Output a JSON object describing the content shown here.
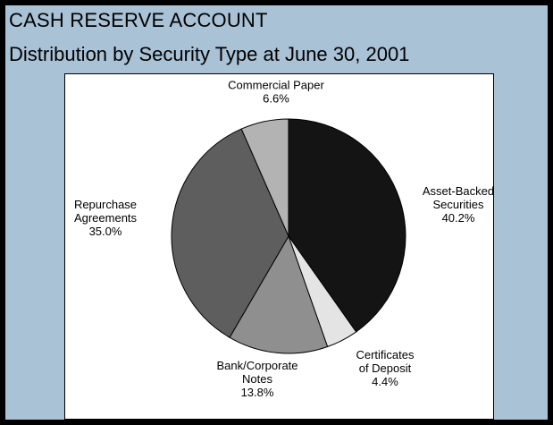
{
  "header": {
    "title": "CASH RESERVE ACCOUNT",
    "subtitle": "Distribution by Security Type at June 30, 2001"
  },
  "colors": {
    "panel_background": "#a9c2d6",
    "asset_backed": "#141414",
    "certificates": "#e4e4e4",
    "bank_corporate": "#8f8f8f",
    "repurchase": "#5e5e5e",
    "commercial_paper": "#b3b3b3"
  },
  "chart_data": {
    "type": "pie",
    "start_angle_deg": 0,
    "direction": "clockwise",
    "slices": [
      {
        "label": "Asset-Backed Securities",
        "label_lines": [
          "Asset-Backed",
          "Securities"
        ],
        "value": 40.2,
        "value_label": "40.2%",
        "color": "#141414"
      },
      {
        "label": "Certificates of Deposit",
        "label_lines": [
          "Certificates",
          "of Deposit"
        ],
        "value": 4.4,
        "value_label": "4.4%",
        "color": "#e4e4e4"
      },
      {
        "label": "Bank/Corporate Notes",
        "label_lines": [
          "Bank/Corporate",
          "Notes"
        ],
        "value": 13.8,
        "value_label": "13.8%",
        "color": "#8f8f8f"
      },
      {
        "label": "Repurchase Agreements",
        "label_lines": [
          "Repurchase",
          "Agreements"
        ],
        "value": 35.0,
        "value_label": "35.0%",
        "color": "#5e5e5e"
      },
      {
        "label": "Commercial Paper",
        "label_lines": [
          "Commercial Paper"
        ],
        "value": 6.6,
        "value_label": "6.6%",
        "color": "#b3b3b3"
      }
    ]
  }
}
